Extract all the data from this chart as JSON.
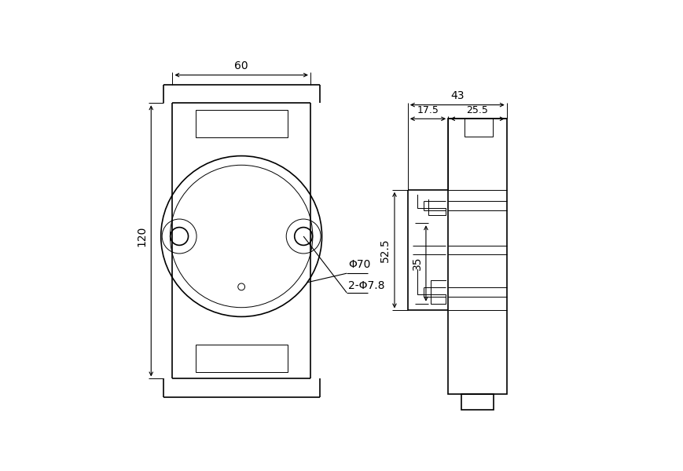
{
  "bg_color": "#ffffff",
  "line_color": "#000000",
  "fig_width": 8.69,
  "fig_height": 6.0,
  "dpi": 100,
  "annotations": {
    "dim_60": "60",
    "dim_120": "120",
    "dim_phi70": "Φ70",
    "dim_phi78": "2-Φ7.8",
    "dim_43": "43",
    "dim_17_5": "17.5",
    "dim_25_5": "25.5",
    "dim_52_5": "52.5",
    "dim_35": "35"
  }
}
